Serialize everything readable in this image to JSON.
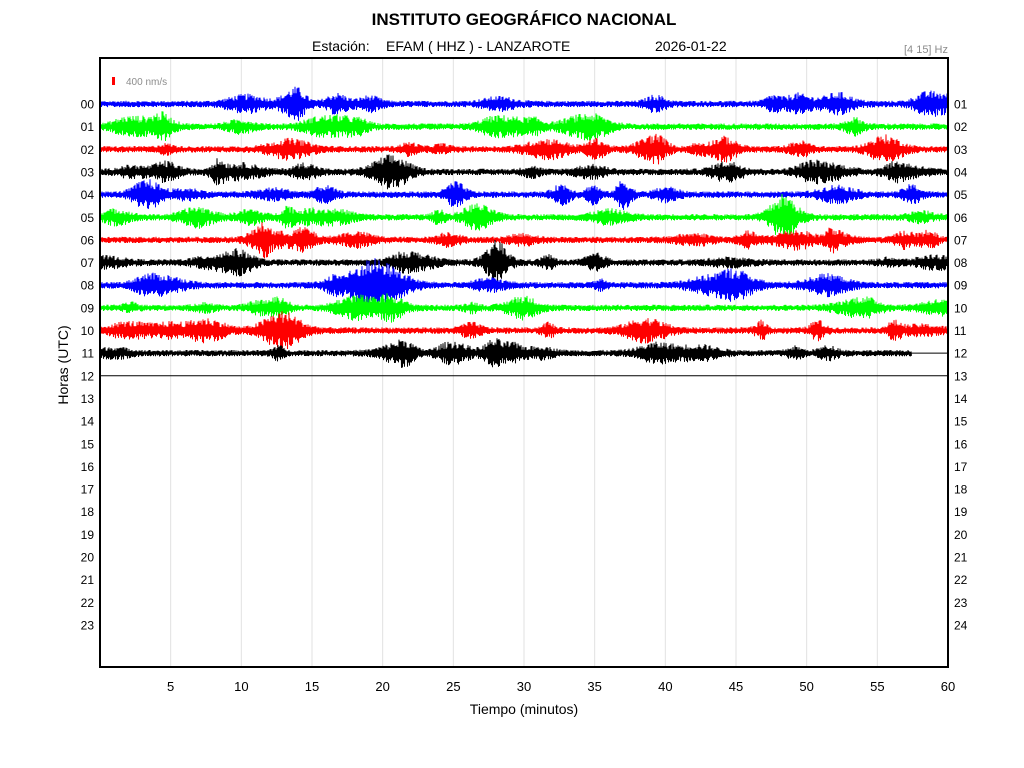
{
  "header": {
    "title": "INSTITUTO GEOGRÁFICO NACIONAL",
    "station_prefix": "Estación:",
    "station": "EFAM ( HHZ ) - LANZAROTE",
    "date": "2026-01-22",
    "filter": "[4 15] Hz"
  },
  "scale_bar": {
    "label": "400 nm/s",
    "color": "#ff0000"
  },
  "chart_data": {
    "type": "line",
    "title": "INSTITUTO GEOGRÁFICO NACIONAL",
    "xlabel": "Tiempo (minutos)",
    "ylabel": "Horas (UTC)",
    "xlim": [
      0,
      60
    ],
    "x_ticks": [
      "5",
      "10",
      "15",
      "20",
      "25",
      "30",
      "35",
      "40",
      "45",
      "50",
      "55",
      "60"
    ],
    "grid_x": true,
    "left_labels": [
      "00",
      "01",
      "02",
      "03",
      "04",
      "05",
      "06",
      "07",
      "08",
      "09",
      "10",
      "11",
      "12",
      "13",
      "14",
      "15",
      "16",
      "17",
      "18",
      "19",
      "20",
      "21",
      "22",
      "23"
    ],
    "right_labels": [
      "01",
      "02",
      "03",
      "04",
      "05",
      "06",
      "07",
      "08",
      "09",
      "10",
      "11",
      "12",
      "13",
      "14",
      "15",
      "16",
      "17",
      "18",
      "19",
      "20",
      "21",
      "22",
      "23",
      "24"
    ],
    "traces": [
      {
        "hour": "00",
        "color": "#0000ff",
        "end_minute": 60
      },
      {
        "hour": "01",
        "color": "#00ff00",
        "end_minute": 60
      },
      {
        "hour": "02",
        "color": "#ff0000",
        "end_minute": 60
      },
      {
        "hour": "03",
        "color": "#000000",
        "end_minute": 60
      },
      {
        "hour": "04",
        "color": "#0000ff",
        "end_minute": 60
      },
      {
        "hour": "05",
        "color": "#00ff00",
        "end_minute": 60
      },
      {
        "hour": "06",
        "color": "#ff0000",
        "end_minute": 60
      },
      {
        "hour": "07",
        "color": "#000000",
        "end_minute": 60
      },
      {
        "hour": "08",
        "color": "#0000ff",
        "end_minute": 60
      },
      {
        "hour": "09",
        "color": "#00ff00",
        "end_minute": 60
      },
      {
        "hour": "10",
        "color": "#ff0000",
        "end_minute": 60
      },
      {
        "hour": "11",
        "color": "#000000",
        "end_minute": 57.4,
        "flat_until": 60
      },
      {
        "hour": "12",
        "color": "#000000",
        "end_minute": 60,
        "flat": true
      }
    ]
  }
}
